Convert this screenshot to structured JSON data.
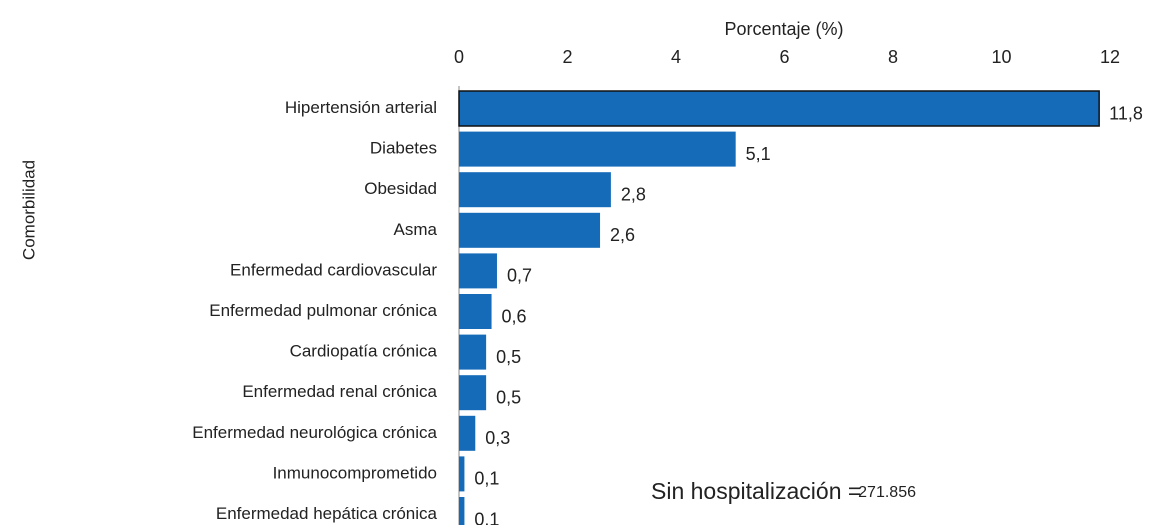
{
  "chart_data": {
    "type": "bar",
    "orientation": "horizontal",
    "xlabel": "Porcentaje (%)",
    "ylabel": "Comorbilidad",
    "categories": [
      "Hipertensión arterial",
      "Diabetes",
      "Obesidad",
      "Asma",
      "Enfermedad cardiovascular",
      "Enfermedad pulmonar crónica",
      "Cardiopatía crónica",
      "Enfermedad renal crónica",
      "Enfermedad neurológica crónica",
      "Inmunocomprometido",
      "Enfermedad hepática crónica"
    ],
    "values": [
      11.8,
      5.1,
      2.8,
      2.6,
      0.7,
      0.6,
      0.5,
      0.5,
      0.3,
      0.1,
      0.1
    ],
    "value_labels": [
      "11,8",
      "5,1",
      "2,8",
      "2,6",
      "0,7",
      "0,6",
      "0,5",
      "0,5",
      "0,3",
      "0,1",
      "0,1"
    ],
    "color": "#156bb8",
    "xlim": [
      0,
      12
    ],
    "xticks": [
      0,
      2,
      4,
      6,
      8,
      10,
      12
    ],
    "annotations": [
      "Sin hospitalización =",
      "271.856"
    ]
  }
}
